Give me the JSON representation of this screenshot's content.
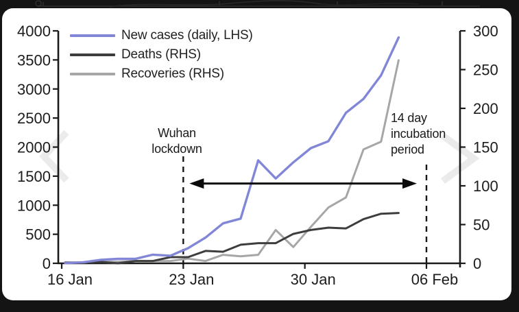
{
  "colors": {
    "background": "#141414",
    "card": "#ffffff",
    "axis": "#1a1a1a",
    "new_cases": "#8187d6",
    "deaths": "#3d3d3d",
    "recoveries": "#a6a6a6",
    "chevron": "#ebebeb"
  },
  "legend": {
    "items": [
      {
        "label": "New cases (daily, LHS)",
        "color": "#8187d6"
      },
      {
        "label": "Deaths (RHS)",
        "color": "#3d3d3d"
      },
      {
        "label": "Recoveries (RHS)",
        "color": "#a6a6a6"
      }
    ]
  },
  "annotations": {
    "lockdown": "Wuhan\nlockdown",
    "incubation": "14 day\nincubation\nperiod"
  },
  "carousel": {
    "prev_icon": "chevron-left",
    "next_icon": "chevron-right"
  },
  "chart_data": {
    "type": "line",
    "title": "",
    "grid": false,
    "legend_position": "top-left",
    "x": [
      "16 Jan",
      "17 Jan",
      "18 Jan",
      "19 Jan",
      "20 Jan",
      "21 Jan",
      "22 Jan",
      "23 Jan",
      "24 Jan",
      "25 Jan",
      "26 Jan",
      "27 Jan",
      "28 Jan",
      "29 Jan",
      "30 Jan",
      "31 Jan",
      "01 Feb",
      "02 Feb",
      "03 Feb",
      "04 Feb"
    ],
    "x_axis": {
      "tick_labels": [
        "16 Jan",
        "23 Jan",
        "30 Jan",
        "06 Feb"
      ],
      "tick_days": [
        0,
        7,
        14,
        21
      ],
      "span_days": 21
    },
    "left_axis": {
      "range": [
        0,
        4000
      ],
      "ticks": [
        0,
        500,
        1000,
        1500,
        2000,
        2500,
        3000,
        3500,
        4000
      ]
    },
    "right_axis": {
      "range": [
        0,
        300
      ],
      "ticks": [
        0,
        50,
        100,
        150,
        200,
        250,
        300
      ]
    },
    "series": [
      {
        "name": "New cases (daily, LHS)",
        "axis": "left",
        "color": "#8187d6",
        "values": [
          4,
          17,
          59,
          77,
          77,
          149,
          131,
          259,
          444,
          688,
          769,
          1771,
          1459,
          1737,
          1982,
          2102,
          2590,
          2829,
          3235,
          3887
        ]
      },
      {
        "name": "Deaths (RHS)",
        "axis": "right",
        "color": "#3d3d3d",
        "values": [
          1,
          1,
          2,
          0,
          3,
          3,
          8,
          8,
          16,
          15,
          24,
          26,
          26,
          38,
          43,
          46,
          45,
          57,
          64,
          65
        ]
      },
      {
        "name": "Recoveries (RHS)",
        "axis": "right",
        "color": "#a6a6a6",
        "values": [
          1,
          1,
          2,
          2,
          3,
          3,
          3,
          6,
          3,
          11,
          9,
          11,
          43,
          21,
          47,
          72,
          85,
          147,
          157,
          262
        ]
      }
    ],
    "event_lines": [
      {
        "label": "Wuhan lockdown",
        "day": 7
      },
      {
        "label": "14 day incubation period",
        "day": 21
      }
    ],
    "arrow": {
      "from_day": 7,
      "to_day": 21,
      "y_right_value": 103
    }
  }
}
